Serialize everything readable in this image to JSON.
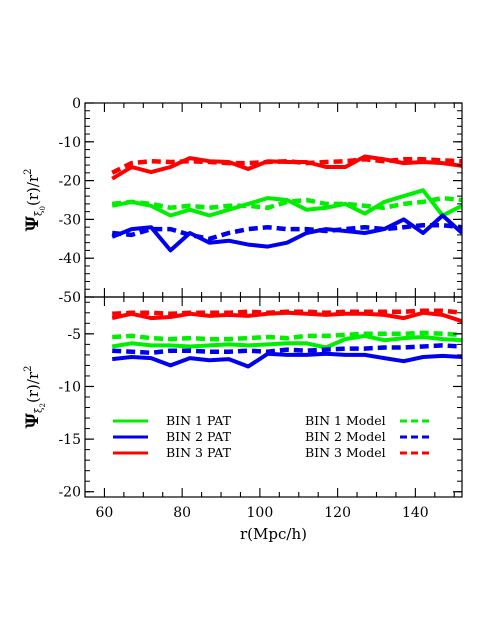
{
  "chart_data": [
    {
      "type": "line",
      "ylabel_main": "Ψ",
      "ylabel_sub": "ξ",
      "ylabel_subsub": "0",
      "ylabel_rest": "(r)/r",
      "ylabel_sup": "2",
      "xlim": [
        55,
        152
      ],
      "ylim": [
        -50,
        0
      ],
      "yticks": [
        0,
        -10,
        -20,
        -30,
        -40,
        -50
      ],
      "ytick_labels": [
        "0",
        "-10",
        "-20",
        "-30",
        "-40",
        "-50"
      ],
      "grid": false,
      "series": [
        {
          "color": "#ff0000",
          "style": "solid",
          "x": [
            62,
            67,
            72,
            77,
            82,
            87,
            92,
            97,
            102,
            107,
            112,
            117,
            122,
            127,
            132,
            137,
            142,
            147,
            152
          ],
          "y": [
            -19.5,
            -16.5,
            -17.8,
            -16.5,
            -14.2,
            -15,
            -15.2,
            -17,
            -15,
            -15.2,
            -15.2,
            -16.5,
            -16.5,
            -13.8,
            -14.5,
            -15.5,
            -15.2,
            -15.5,
            -16.2
          ]
        },
        {
          "color": "#ff0000",
          "style": "dashed",
          "x": [
            62,
            67,
            72,
            77,
            82,
            87,
            92,
            97,
            102,
            107,
            112,
            117,
            122,
            127,
            132,
            137,
            142,
            147,
            152
          ],
          "y": [
            -18,
            -15.5,
            -15,
            -15.2,
            -15,
            -15.2,
            -15.5,
            -15.5,
            -15.2,
            -15,
            -15.5,
            -15.2,
            -15,
            -14.5,
            -15,
            -14.5,
            -14.5,
            -14.8,
            -15
          ]
        },
        {
          "color": "#00ee00",
          "style": "solid",
          "x": [
            62,
            67,
            72,
            77,
            82,
            87,
            92,
            97,
            102,
            107,
            112,
            117,
            122,
            127,
            132,
            137,
            142,
            147,
            152
          ],
          "y": [
            -26.5,
            -25.5,
            -26.5,
            -29,
            -27.5,
            -29,
            -27.5,
            -26,
            -24.5,
            -25,
            -27.5,
            -27,
            -26,
            -28.5,
            -25.5,
            -24,
            -22.5,
            -29,
            -26.5
          ]
        },
        {
          "color": "#00ee00",
          "style": "dashed",
          "x": [
            62,
            67,
            72,
            77,
            82,
            87,
            92,
            97,
            102,
            107,
            112,
            117,
            122,
            127,
            132,
            137,
            142,
            147,
            152
          ],
          "y": [
            -26,
            -25.5,
            -26,
            -27,
            -26.5,
            -27,
            -26.5,
            -26.5,
            -27,
            -25.5,
            -25,
            -26,
            -26,
            -26.5,
            -27,
            -26,
            -25.5,
            -24.5,
            -25
          ]
        },
        {
          "color": "#0000ee",
          "style": "solid",
          "x": [
            62,
            67,
            72,
            77,
            82,
            87,
            92,
            97,
            102,
            107,
            112,
            117,
            122,
            127,
            132,
            137,
            142,
            147,
            152
          ],
          "y": [
            -34.5,
            -32.5,
            -32,
            -38,
            -33.5,
            -36,
            -35.5,
            -36.5,
            -37,
            -36,
            -33.5,
            -32.5,
            -33,
            -33.5,
            -32.5,
            -30,
            -33.5,
            -29,
            -33.5
          ]
        },
        {
          "color": "#0000ee",
          "style": "dashed",
          "x": [
            62,
            67,
            72,
            77,
            82,
            87,
            92,
            97,
            102,
            107,
            112,
            117,
            122,
            127,
            132,
            137,
            142,
            147,
            152
          ],
          "y": [
            -33.5,
            -34,
            -32.5,
            -32.5,
            -34,
            -35,
            -33.5,
            -32.5,
            -32,
            -32.5,
            -32.5,
            -33,
            -32.5,
            -32,
            -32.5,
            -32,
            -31.5,
            -31.5,
            -32
          ]
        }
      ]
    },
    {
      "type": "line",
      "ylabel_main": "Ψ",
      "ylabel_sub": "ξ",
      "ylabel_subsub": "2",
      "ylabel_rest": "(r)/r",
      "ylabel_sup": "2",
      "xlabel": "r(Mpc/h)",
      "xlim": [
        55,
        152
      ],
      "ylim": [
        -20.5,
        -1.5
      ],
      "xticks": [
        60,
        80,
        100,
        120,
        140
      ],
      "xtick_labels": [
        "60",
        "80",
        "100",
        "120",
        "140"
      ],
      "yticks": [
        -5,
        -10,
        -15,
        -20
      ],
      "ytick_labels": [
        "-5",
        "-10",
        "-15",
        "-20"
      ],
      "grid": false,
      "legend_placement": "bottom",
      "legend": [
        {
          "label": "BIN 1 PAT",
          "color": "#00ee00",
          "style": "solid"
        },
        {
          "label": "BIN 2 PAT",
          "color": "#0000ee",
          "style": "solid"
        },
        {
          "label": "BIN 3 PAT",
          "color": "#ff0000",
          "style": "solid"
        },
        {
          "label": "BIN 1 Model",
          "color": "#00ee00",
          "style": "dashed"
        },
        {
          "label": "BIN 2 Model",
          "color": "#0000ee",
          "style": "dashed"
        },
        {
          "label": "BIN 3 Model",
          "color": "#ff0000",
          "style": "dashed"
        }
      ],
      "series": [
        {
          "color": "#ff0000",
          "style": "solid",
          "x": [
            62,
            67,
            72,
            77,
            82,
            87,
            92,
            97,
            102,
            107,
            112,
            117,
            122,
            127,
            132,
            137,
            142,
            147,
            152
          ],
          "y": [
            -3.5,
            -3.1,
            -3.5,
            -3.4,
            -3.1,
            -3.3,
            -3.2,
            -3.3,
            -3.1,
            -3,
            -3.1,
            -3.2,
            -3.1,
            -3.1,
            -3.2,
            -3.5,
            -3,
            -3.2,
            -3.8
          ]
        },
        {
          "color": "#ff0000",
          "style": "dashed",
          "x": [
            62,
            67,
            72,
            77,
            82,
            87,
            92,
            97,
            102,
            107,
            112,
            117,
            122,
            127,
            132,
            137,
            142,
            147,
            152
          ],
          "y": [
            -3.1,
            -3.0,
            -3.0,
            -3.1,
            -3.0,
            -3.0,
            -3.0,
            -2.9,
            -3.0,
            -2.9,
            -2.9,
            -3.0,
            -2.9,
            -2.9,
            -2.9,
            -2.9,
            -2.8,
            -2.8,
            -3.0
          ]
        },
        {
          "color": "#00ee00",
          "style": "solid",
          "x": [
            62,
            67,
            72,
            77,
            82,
            87,
            92,
            97,
            102,
            107,
            112,
            117,
            122,
            127,
            132,
            137,
            142,
            147,
            152
          ],
          "y": [
            -6.2,
            -5.9,
            -6.1,
            -6.1,
            -6.2,
            -6.1,
            -6.0,
            -6.1,
            -6.0,
            -5.9,
            -5.9,
            -6.3,
            -5.5,
            -5.2,
            -5.6,
            -5.4,
            -5.3,
            -5.5,
            -5.6
          ]
        },
        {
          "color": "#00ee00",
          "style": "dashed",
          "x": [
            62,
            67,
            72,
            77,
            82,
            87,
            92,
            97,
            102,
            107,
            112,
            117,
            122,
            127,
            132,
            137,
            142,
            147,
            152
          ],
          "y": [
            -5.3,
            -5.2,
            -5.4,
            -5.5,
            -5.4,
            -5.5,
            -5.5,
            -5.4,
            -5.3,
            -5.4,
            -5.2,
            -5.2,
            -5.1,
            -5.0,
            -5.0,
            -5.0,
            -4.9,
            -5.0,
            -5.1
          ]
        },
        {
          "color": "#0000ee",
          "style": "solid",
          "x": [
            62,
            67,
            72,
            77,
            82,
            87,
            92,
            97,
            102,
            107,
            112,
            117,
            122,
            127,
            132,
            137,
            142,
            147,
            152
          ],
          "y": [
            -7.4,
            -7.2,
            -7.3,
            -8.0,
            -7.3,
            -7.5,
            -7.4,
            -8.1,
            -6.9,
            -7.0,
            -7.0,
            -6.9,
            -7.0,
            -7.0,
            -7.3,
            -7.6,
            -7.2,
            -7.1,
            -7.2
          ]
        },
        {
          "color": "#0000ee",
          "style": "dashed",
          "x": [
            62,
            67,
            72,
            77,
            82,
            87,
            92,
            97,
            102,
            107,
            112,
            117,
            122,
            127,
            132,
            137,
            142,
            147,
            152
          ],
          "y": [
            -6.6,
            -6.7,
            -6.8,
            -6.6,
            -6.6,
            -6.7,
            -6.7,
            -6.6,
            -6.7,
            -6.5,
            -6.6,
            -6.5,
            -6.4,
            -6.4,
            -6.3,
            -6.3,
            -6.2,
            -6.1,
            -6.2
          ]
        }
      ]
    }
  ]
}
